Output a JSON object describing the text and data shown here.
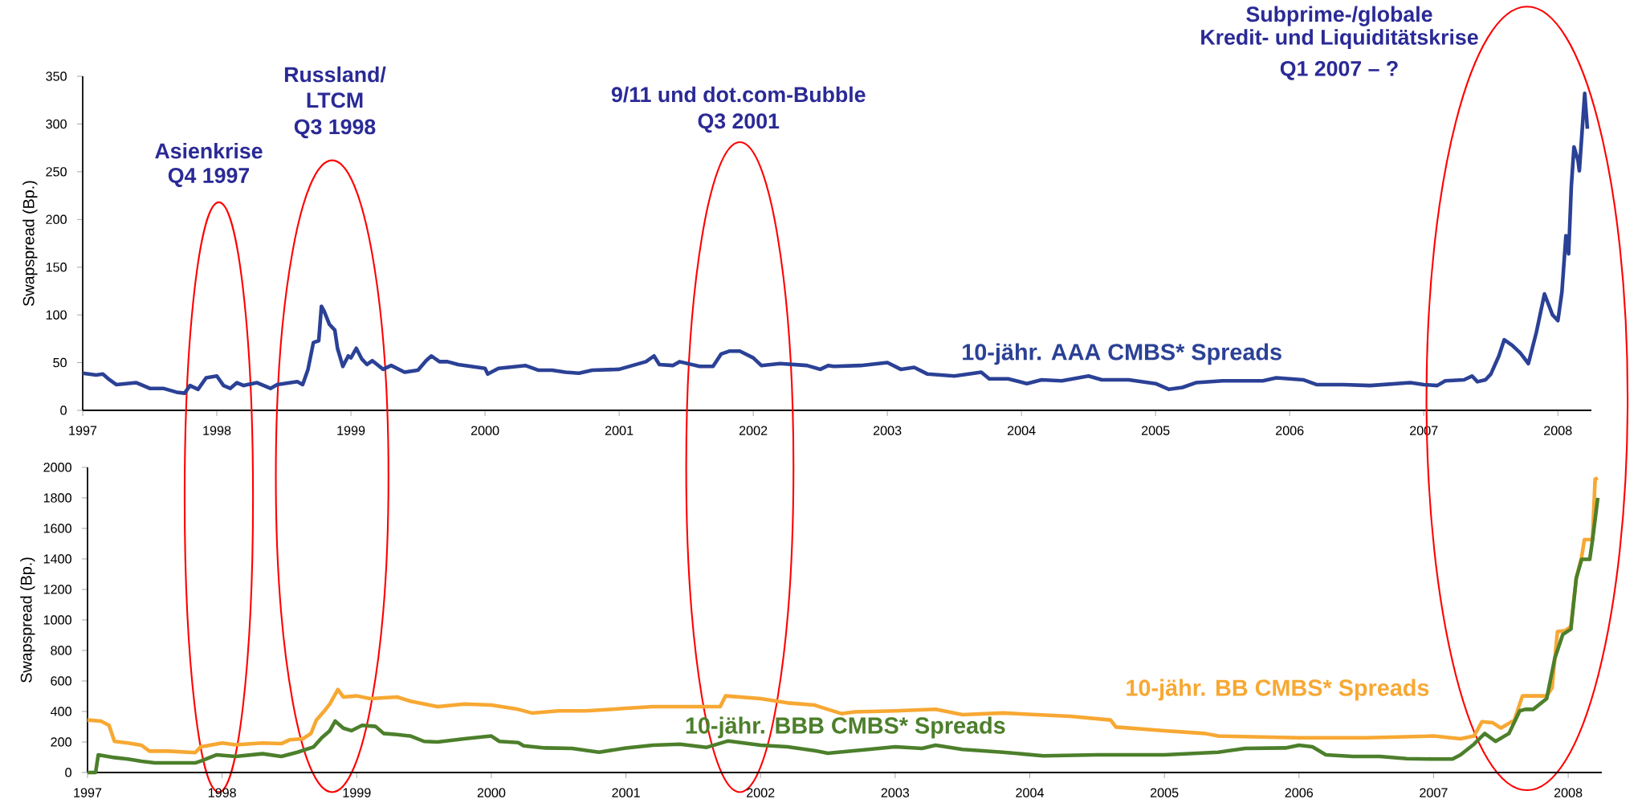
{
  "chart_data": [
    {
      "type": "line",
      "ylabel": "Swapspread (Bp.)",
      "xlim": [
        1997,
        2008.25
      ],
      "xticks": [
        1997,
        1998,
        1999,
        2000,
        2001,
        2002,
        2003,
        2004,
        2005,
        2006,
        2007,
        2008
      ],
      "ylim": [
        0,
        350
      ],
      "yticks": [
        0,
        50,
        100,
        150,
        200,
        250,
        300,
        350
      ],
      "grid": false,
      "legend": false,
      "line_style": "solid",
      "annotations": [
        "Asienkrise",
        "Q4 1997",
        "Russland/",
        "LTCM",
        "Q3 1998",
        "9/11 und dot.com-Bubble",
        "Q3 2001",
        "Subprime-/globale",
        "Kredit- und Liquiditätskrise",
        "Q1 2007 – ?"
      ],
      "series": [
        {
          "name": "10-jähr. AAA CMBS* Spreads",
          "color": "#2b4196",
          "x": [
            1997.0,
            1997.1,
            1997.15,
            1997.2,
            1997.25,
            1997.4,
            1997.45,
            1997.5,
            1997.6,
            1997.7,
            1997.76,
            1997.8,
            1997.86,
            1997.92,
            1998.0,
            1998.05,
            1998.1,
            1998.15,
            1998.2,
            1998.3,
            1998.4,
            1998.45,
            1998.6,
            1998.64,
            1998.68,
            1998.72,
            1998.76,
            1998.78,
            1998.8,
            1998.84,
            1998.88,
            1998.9,
            1998.94,
            1998.98,
            1999.0,
            1999.04,
            1999.08,
            1999.12,
            1999.16,
            1999.24,
            1999.3,
            1999.4,
            1999.5,
            1999.56,
            1999.6,
            1999.66,
            1999.72,
            1999.8,
            2000.0,
            2000.02,
            2000.1,
            2000.3,
            2000.4,
            2000.5,
            2000.6,
            2000.7,
            2000.8,
            2001.0,
            2001.1,
            2001.2,
            2001.26,
            2001.3,
            2001.4,
            2001.45,
            2001.6,
            2001.7,
            2001.76,
            2001.82,
            2001.9,
            2002.0,
            2002.06,
            2002.2,
            2002.4,
            2002.5,
            2002.56,
            2002.6,
            2002.8,
            2003.0,
            2003.1,
            2003.2,
            2003.3,
            2003.5,
            2003.7,
            2003.76,
            2003.9,
            2004.04,
            2004.15,
            2004.3,
            2004.5,
            2004.6,
            2004.8,
            2005.0,
            2005.1,
            2005.2,
            2005.3,
            2005.5,
            2005.8,
            2005.9,
            2006.1,
            2006.2,
            2006.4,
            2006.6,
            2006.9,
            2007.0,
            2007.1,
            2007.16,
            2007.3,
            2007.36,
            2007.4,
            2007.46,
            2007.5,
            2007.56,
            2007.6,
            2007.66,
            2007.72,
            2007.78,
            2007.84,
            2007.9,
            2007.96,
            2008.0,
            2008.03,
            2008.06,
            2008.08,
            2008.1,
            2008.12,
            2008.15,
            2008.16,
            2008.2,
            2008.22
          ],
          "values": [
            39,
            37,
            38,
            32,
            27,
            29,
            26,
            23,
            23,
            19,
            18,
            26,
            22,
            34,
            36,
            26,
            23,
            29,
            26,
            29,
            23,
            27,
            30,
            27,
            43,
            71,
            73,
            109,
            104,
            90,
            84,
            65,
            46,
            57,
            55,
            65,
            54,
            48,
            52,
            43,
            47,
            40,
            42,
            52,
            57,
            51,
            51,
            48,
            44,
            38,
            44,
            47,
            42,
            42,
            40,
            39,
            42,
            43,
            47,
            51,
            57,
            48,
            47,
            51,
            46,
            46,
            59,
            62,
            62,
            55,
            47,
            49,
            47,
            43,
            47,
            46,
            47,
            50,
            43,
            45,
            38,
            36,
            40,
            33,
            33,
            28,
            32,
            31,
            36,
            32,
            32,
            28,
            22,
            24,
            29,
            31,
            31,
            34,
            32,
            27,
            27,
            26,
            29,
            27,
            26,
            31,
            32,
            36,
            30,
            32,
            38,
            57,
            74,
            68,
            60,
            49,
            82,
            122,
            100,
            94,
            124,
            183,
            164,
            234,
            276,
            262,
            251,
            332,
            295
          ]
        }
      ]
    },
    {
      "type": "line",
      "ylabel": "Swapspread (Bp.)",
      "xlim": [
        1997,
        2008.25
      ],
      "xticks": [
        1997,
        1998,
        1999,
        2000,
        2001,
        2002,
        2003,
        2004,
        2005,
        2006,
        2007,
        2008
      ],
      "ylim": [
        0,
        2000
      ],
      "yticks": [
        0,
        200,
        400,
        600,
        800,
        1000,
        1200,
        1400,
        1600,
        1800,
        2000
      ],
      "grid": false,
      "legend": false,
      "line_style": "solid",
      "series": [
        {
          "name": "10-jähr. BB CMBS* Spreads",
          "color": "#f7a833",
          "x": [
            1997.0,
            1997.1,
            1997.16,
            1997.2,
            1997.3,
            1997.4,
            1997.46,
            1997.6,
            1997.8,
            1997.84,
            1998.0,
            1998.1,
            1998.3,
            1998.44,
            1998.5,
            1998.6,
            1998.66,
            1998.7,
            1998.76,
            1998.8,
            1998.86,
            1998.9,
            1999.0,
            1999.1,
            1999.3,
            1999.4,
            1999.6,
            1999.8,
            2000.0,
            2000.2,
            2000.3,
            2000.5,
            2000.7,
            2000.9,
            2001.0,
            2001.2,
            2001.4,
            2001.7,
            2001.74,
            2002.0,
            2002.2,
            2002.4,
            2002.5,
            2002.6,
            2002.7,
            2003.0,
            2003.3,
            2003.5,
            2003.8,
            2004.3,
            2004.6,
            2004.64,
            2005.0,
            2005.3,
            2005.4,
            2006.0,
            2006.5,
            2007.0,
            2007.2,
            2007.3,
            2007.36,
            2007.44,
            2007.5,
            2007.6,
            2007.66,
            2007.84,
            2007.88,
            2007.92,
            2007.98,
            2008.02,
            2008.06,
            2008.1,
            2008.12,
            2008.18,
            2008.2,
            2008.22
          ],
          "values": [
            344,
            337,
            309,
            204,
            193,
            179,
            140,
            140,
            130,
            168,
            193,
            182,
            193,
            189,
            214,
            221,
            256,
            344,
            404,
            449,
            544,
            495,
            502,
            484,
            495,
            467,
            432,
            449,
            442,
            414,
            390,
            404,
            404,
            414,
            421,
            432,
            432,
            432,
            502,
            484,
            456,
            442,
            414,
            386,
            397,
            404,
            414,
            379,
            390,
            368,
            344,
            298,
            274,
            256,
            239,
            228,
            228,
            239,
            221,
            239,
            333,
            326,
            291,
            344,
            502,
            502,
            554,
            923,
            930,
            958,
            1274,
            1414,
            1526,
            1526,
            1923,
            1930
          ]
        },
        {
          "name": "10-jähr. BBB CMBS* Spreads",
          "color": "#4c7f2b",
          "x": [
            1997.0,
            1997.06,
            1997.08,
            1997.2,
            1997.3,
            1997.4,
            1997.5,
            1997.8,
            1997.86,
            1997.96,
            1998.1,
            1998.3,
            1998.44,
            1998.56,
            1998.68,
            1998.74,
            1998.8,
            1998.84,
            1998.9,
            1998.96,
            1999.04,
            1999.14,
            1999.2,
            1999.3,
            1999.4,
            1999.5,
            1999.6,
            1999.8,
            2000.0,
            2000.06,
            2000.2,
            2000.24,
            2000.4,
            2000.6,
            2000.8,
            2001.0,
            2001.2,
            2001.4,
            2001.6,
            2001.76,
            2002.0,
            2002.2,
            2002.4,
            2002.5,
            2002.8,
            2003.0,
            2003.2,
            2003.3,
            2003.5,
            2003.8,
            2004.1,
            2004.5,
            2005.0,
            2005.4,
            2005.6,
            2005.9,
            2006.0,
            2006.1,
            2006.2,
            2006.4,
            2006.6,
            2006.8,
            2007.0,
            2007.14,
            2007.2,
            2007.3,
            2007.38,
            2007.46,
            2007.56,
            2007.64,
            2007.68,
            2007.74,
            2007.84,
            2007.9,
            2007.96,
            2008.02,
            2008.06,
            2008.1,
            2008.16,
            2008.18,
            2008.22
          ],
          "values": [
            0,
            0,
            116,
            98,
            88,
            74,
            63,
            63,
            81,
            116,
            105,
            123,
            105,
            133,
            168,
            228,
            274,
            337,
            291,
            274,
            309,
            302,
            256,
            249,
            239,
            204,
            200,
            221,
            239,
            204,
            196,
            175,
            161,
            158,
            133,
            161,
            179,
            186,
            165,
            207,
            179,
            168,
            144,
            126,
            151,
            168,
            158,
            179,
            151,
            133,
            109,
            116,
            116,
            133,
            158,
            161,
            179,
            168,
            116,
            105,
            105,
            91,
            88,
            88,
            116,
            186,
            256,
            204,
            256,
            404,
            414,
            414,
            484,
            747,
            905,
            940,
            1274,
            1397,
            1397,
            1519,
            1800
          ]
        }
      ]
    }
  ]
}
